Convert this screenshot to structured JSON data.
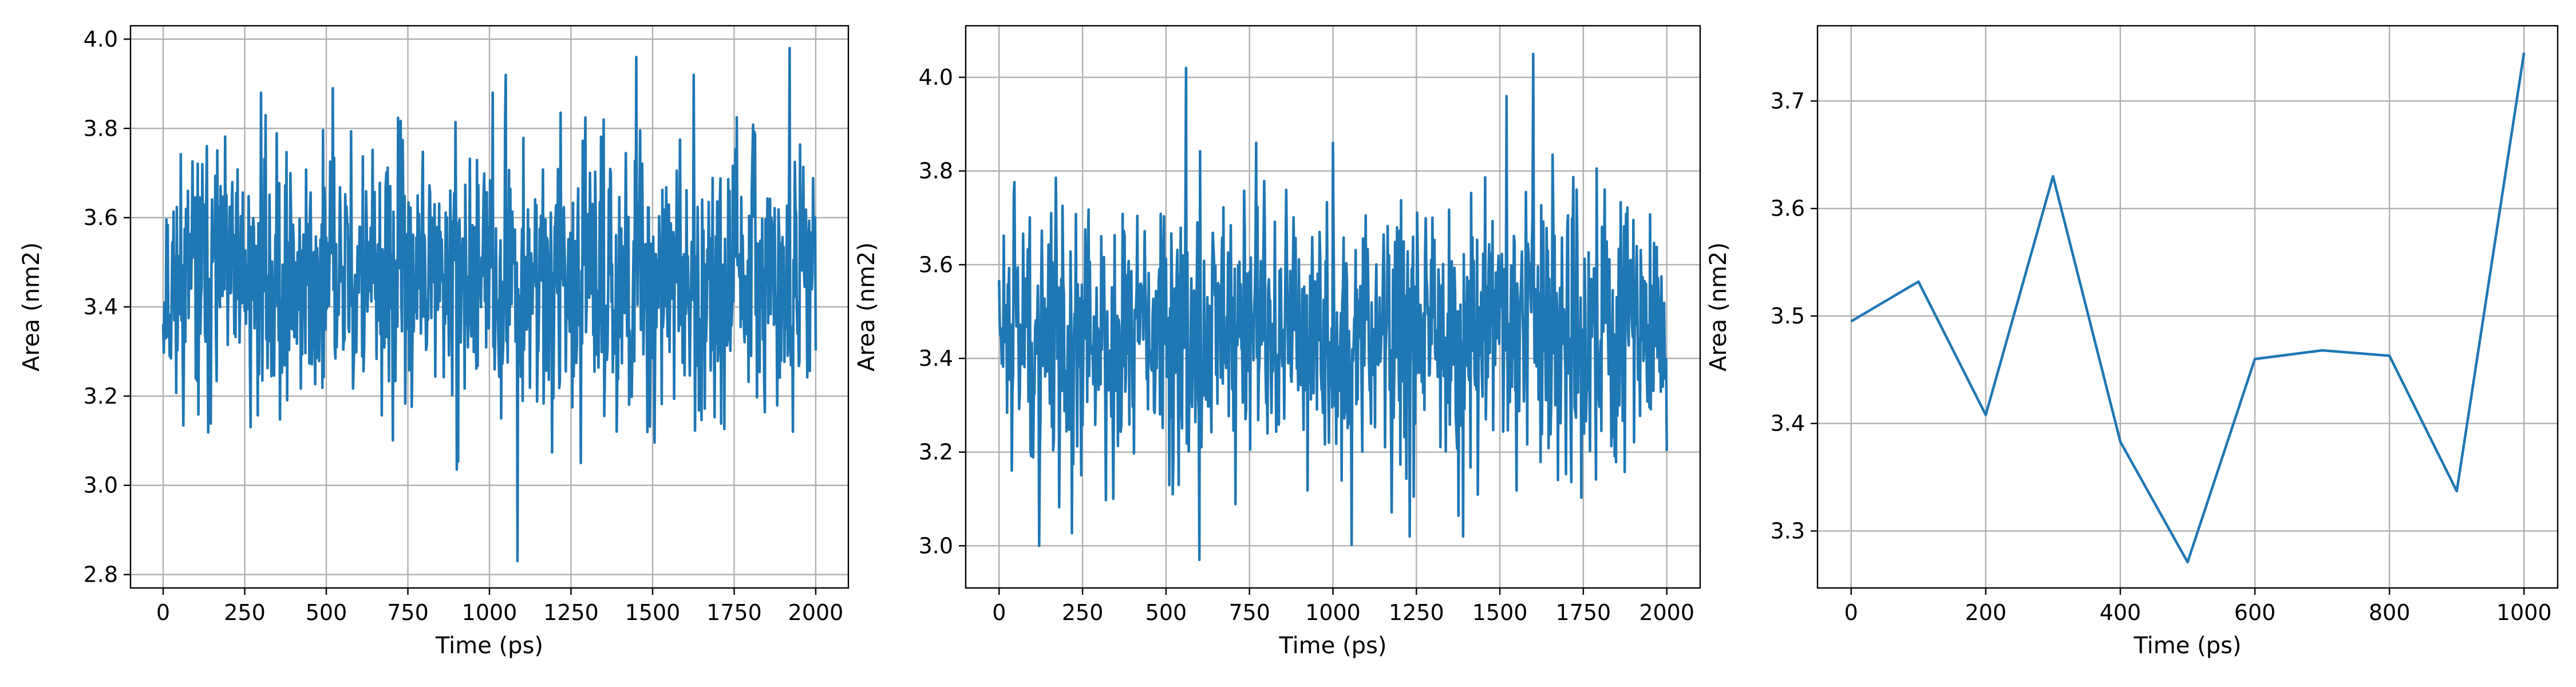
{
  "chart_data": [
    {
      "type": "line",
      "xlabel": "Time (ps)",
      "ylabel": "Area (nm2)",
      "xlim": [
        -100,
        2100
      ],
      "ylim": [
        2.77,
        4.03
      ],
      "xticks": [
        0,
        250,
        500,
        750,
        1000,
        1250,
        1500,
        1750,
        2000
      ],
      "yticks": [
        2.8,
        3.0,
        3.2,
        3.4,
        3.6,
        3.8,
        4.0
      ],
      "tick_decimals": 1,
      "grid": true,
      "color": "#1f77b4",
      "generator": {
        "kind": "noise",
        "x_start": 0,
        "x_end": 2000,
        "n_points": 1001,
        "mean": 3.46,
        "std": 0.14,
        "seed": 11,
        "extremes": [
          [
            1085,
            2.83
          ],
          [
            1920,
            3.98
          ],
          [
            1450,
            3.96
          ],
          [
            1050,
            3.92
          ],
          [
            300,
            3.88
          ],
          [
            520,
            3.89
          ],
          [
            1625,
            3.92
          ],
          [
            1010,
            3.88
          ],
          [
            1930,
            3.12
          ],
          [
            1280,
            3.05
          ]
        ]
      }
    },
    {
      "type": "line",
      "xlabel": "Time (ps)",
      "ylabel": "Area (nm2)",
      "xlim": [
        -100,
        2100
      ],
      "ylim": [
        2.91,
        4.11
      ],
      "xticks": [
        0,
        250,
        500,
        750,
        1000,
        1250,
        1500,
        1750,
        2000
      ],
      "yticks": [
        3.0,
        3.2,
        3.4,
        3.6,
        3.8,
        4.0
      ],
      "tick_decimals": 1,
      "grid": true,
      "color": "#1f77b4",
      "generator": {
        "kind": "noise",
        "x_start": 0,
        "x_end": 2000,
        "n_points": 1001,
        "mean": 3.45,
        "std": 0.14,
        "seed": 29,
        "extremes": [
          [
            600,
            2.97
          ],
          [
            560,
            4.02
          ],
          [
            1600,
            4.05
          ],
          [
            1520,
            3.96
          ],
          [
            120,
            3.0
          ],
          [
            1230,
            3.02
          ],
          [
            1390,
            3.02
          ],
          [
            770,
            3.86
          ],
          [
            1000,
            3.86
          ]
        ]
      }
    },
    {
      "type": "line",
      "xlabel": "Time (ps)",
      "ylabel": "Area (nm2)",
      "xlim": [
        -50,
        1050
      ],
      "ylim": [
        3.247,
        3.77
      ],
      "xticks": [
        0,
        200,
        400,
        600,
        800,
        1000
      ],
      "yticks": [
        3.3,
        3.4,
        3.5,
        3.6,
        3.7
      ],
      "tick_decimals": 1,
      "grid": true,
      "color": "#1f77b4",
      "x": [
        0,
        100,
        200,
        300,
        400,
        500,
        600,
        700,
        800,
        900,
        1000
      ],
      "y": [
        3.495,
        3.532,
        3.408,
        3.63,
        3.383,
        3.271,
        3.46,
        3.468,
        3.463,
        3.337,
        3.745
      ]
    }
  ]
}
